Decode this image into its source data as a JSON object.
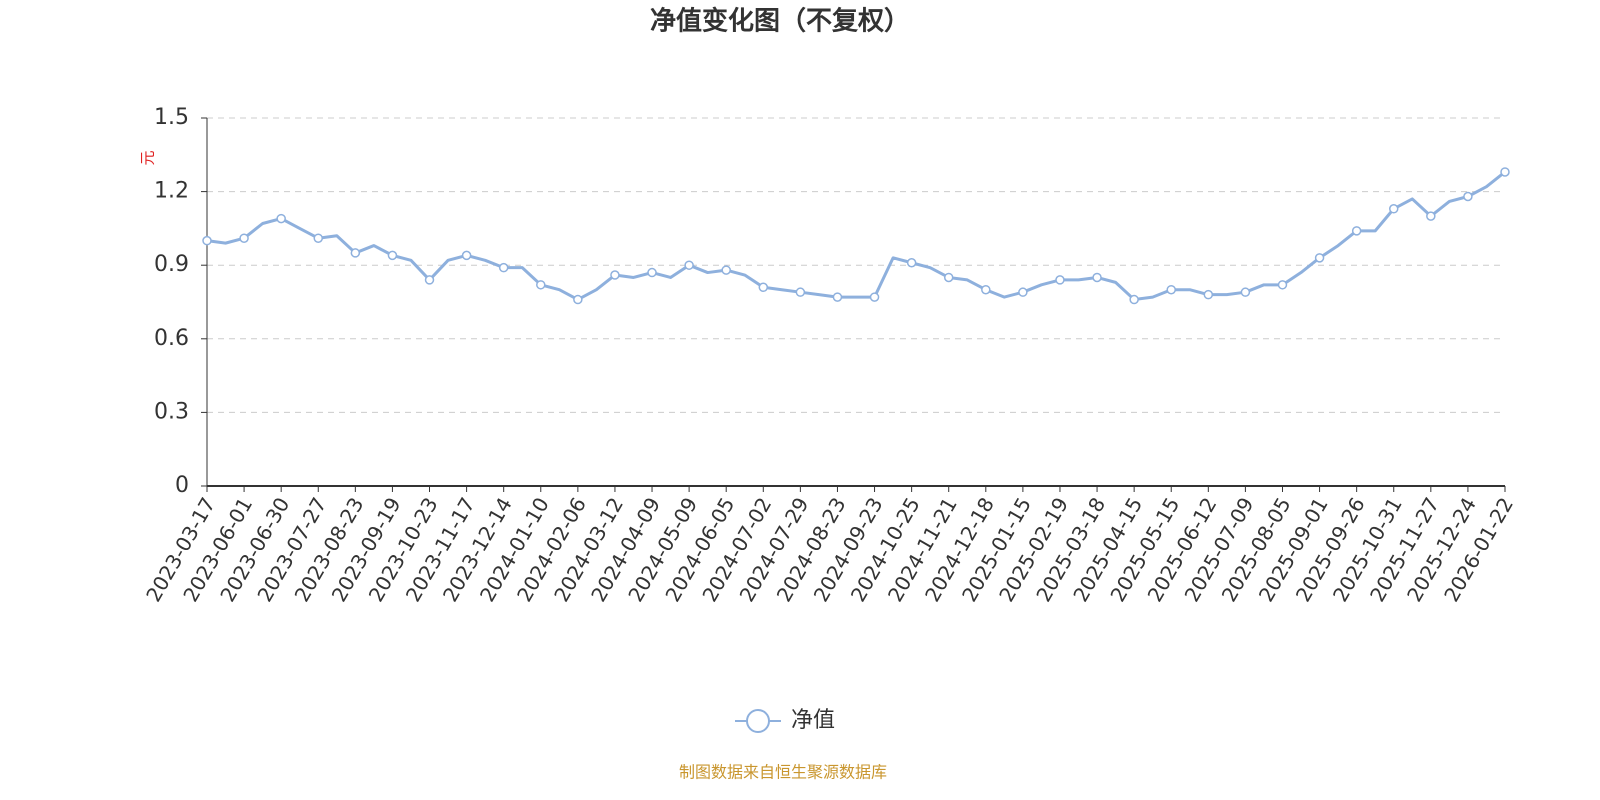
{
  "chart_data": {
    "type": "line",
    "title": "净值变化图（不复权）",
    "y_label": "元",
    "categories": [
      "2023-03-17",
      null,
      "2023-06-01",
      null,
      "2023-06-30",
      null,
      "2023-07-27",
      null,
      "2023-08-23",
      null,
      "2023-09-19",
      null,
      "2023-10-23",
      null,
      "2023-11-17",
      null,
      "2023-12-14",
      null,
      "2024-01-10",
      null,
      "2024-02-06",
      null,
      "2024-03-12",
      null,
      "2024-04-09",
      null,
      "2024-05-09",
      null,
      "2024-06-05",
      null,
      "2024-07-02",
      null,
      "2024-07-29",
      null,
      "2024-08-23",
      null,
      "2024-09-23",
      null,
      "2024-10-25",
      null,
      "2024-11-21",
      null,
      "2024-12-18",
      null,
      "2025-01-15",
      null,
      "2025-02-19",
      null,
      "2025-03-18",
      null,
      "2025-04-15",
      null,
      "2025-05-15",
      null,
      "2025-06-12",
      null,
      "2025-07-09",
      null,
      "2025-08-05",
      null,
      "2025-09-01",
      null,
      "2025-09-26",
      null,
      "2025-10-31",
      null,
      "2025-11-27",
      null,
      "2025-12-24",
      null,
      "2026-01-22"
    ],
    "series": [
      {
        "name": "净值",
        "color": "#8eb0dd",
        "values": [
          1.0,
          0.99,
          1.01,
          1.07,
          1.09,
          1.05,
          1.01,
          1.02,
          0.95,
          0.98,
          0.94,
          0.92,
          0.84,
          0.92,
          0.94,
          0.92,
          0.89,
          0.89,
          0.82,
          0.8,
          0.76,
          0.8,
          0.86,
          0.85,
          0.87,
          0.85,
          0.9,
          0.87,
          0.88,
          0.86,
          0.81,
          0.8,
          0.79,
          0.78,
          0.77,
          0.77,
          0.77,
          0.93,
          0.91,
          0.89,
          0.85,
          0.84,
          0.8,
          0.77,
          0.79,
          0.82,
          0.84,
          0.84,
          0.85,
          0.83,
          0.76,
          0.77,
          0.8,
          0.8,
          0.78,
          0.78,
          0.79,
          0.82,
          0.82,
          0.87,
          0.93,
          0.98,
          1.04,
          1.04,
          1.13,
          1.17,
          1.1,
          1.16,
          1.18,
          1.22,
          1.28
        ]
      }
    ],
    "ylim": [
      0,
      1.5
    ],
    "yticks": [
      0,
      0.3,
      0.6,
      0.9,
      1.2,
      1.5
    ],
    "grid": true,
    "legend_position": "bottom",
    "source": "制图数据来自恒生聚源数据库"
  }
}
